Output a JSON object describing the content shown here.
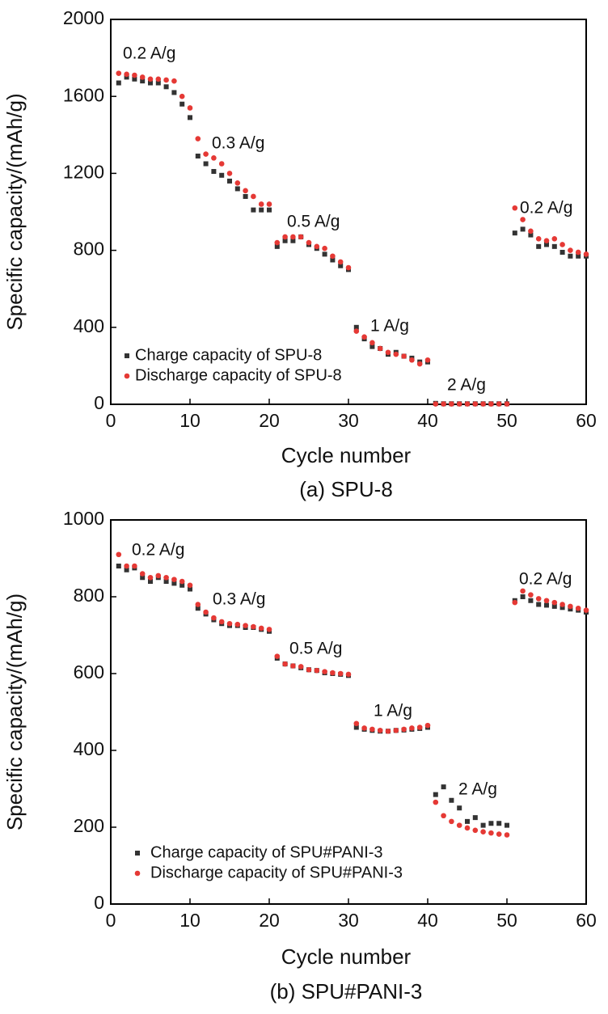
{
  "chart_data": [
    {
      "type": "scatter",
      "caption": "(a) SPU-8",
      "xlabel": "Cycle number",
      "ylabel": "Specific capacity/(mAh/g)",
      "xlim": [
        0,
        60
      ],
      "xticks": [
        0,
        10,
        20,
        30,
        40,
        50,
        60
      ],
      "ylim": [
        0,
        2000
      ],
      "yticks": [
        0,
        400,
        800,
        1200,
        1600,
        2000
      ],
      "legend": "lower left",
      "annotations": [
        "0.2 A/g",
        "0.3 A/g",
        "0.5 A/g",
        "1 A/g",
        "2 A/g",
        "0.2 A/g"
      ],
      "x": [
        1,
        2,
        3,
        4,
        5,
        6,
        7,
        8,
        9,
        10,
        11,
        12,
        13,
        14,
        15,
        16,
        17,
        18,
        19,
        20,
        21,
        22,
        23,
        24,
        25,
        26,
        27,
        28,
        29,
        30,
        31,
        32,
        33,
        34,
        35,
        36,
        37,
        38,
        39,
        40,
        41,
        42,
        43,
        44,
        45,
        46,
        47,
        48,
        49,
        50,
        51,
        52,
        53,
        54,
        55,
        56,
        57,
        58,
        59,
        60
      ],
      "series": [
        {
          "name": "Charge capacity of SPU-8",
          "color": "#333333",
          "marker": "square",
          "values": [
            1670,
            1700,
            1690,
            1680,
            1670,
            1670,
            1650,
            1620,
            1560,
            1490,
            1290,
            1250,
            1210,
            1190,
            1160,
            1120,
            1080,
            1010,
            1010,
            1010,
            820,
            850,
            850,
            870,
            830,
            810,
            780,
            750,
            720,
            700,
            400,
            340,
            300,
            290,
            260,
            270,
            250,
            240,
            220,
            220,
            5,
            3,
            3,
            3,
            3,
            3,
            3,
            3,
            3,
            3,
            890,
            910,
            880,
            820,
            830,
            820,
            790,
            770,
            770,
            770
          ]
        },
        {
          "name": "Discharge capacity of SPU-8",
          "color": "#e53935",
          "marker": "circle",
          "values": [
            1720,
            1715,
            1710,
            1700,
            1690,
            1690,
            1685,
            1680,
            1600,
            1540,
            1380,
            1300,
            1280,
            1250,
            1200,
            1150,
            1110,
            1080,
            1040,
            1040,
            840,
            870,
            870,
            870,
            840,
            820,
            810,
            770,
            740,
            710,
            380,
            350,
            320,
            290,
            270,
            260,
            250,
            230,
            210,
            230,
            2,
            2,
            2,
            2,
            2,
            2,
            2,
            2,
            2,
            2,
            1020,
            960,
            900,
            860,
            850,
            860,
            830,
            800,
            790,
            780
          ]
        }
      ]
    },
    {
      "type": "scatter",
      "caption": "(b) SPU#PANI-3",
      "xlabel": "Cycle number",
      "ylabel": "Specific capacity/(mAh/g)",
      "xlim": [
        0,
        60
      ],
      "xticks": [
        0,
        10,
        20,
        30,
        40,
        50,
        60
      ],
      "ylim": [
        0,
        1000
      ],
      "yticks": [
        0,
        200,
        400,
        600,
        800,
        1000
      ],
      "legend": "lower left",
      "annotations": [
        "0.2 A/g",
        "0.3 A/g",
        "0.5 A/g",
        "1 A/g",
        "2 A/g",
        "0.2 A/g"
      ],
      "x": [
        1,
        2,
        3,
        4,
        5,
        6,
        7,
        8,
        9,
        10,
        11,
        12,
        13,
        14,
        15,
        16,
        17,
        18,
        19,
        20,
        21,
        22,
        23,
        24,
        25,
        26,
        27,
        28,
        29,
        30,
        31,
        32,
        33,
        34,
        35,
        36,
        37,
        38,
        39,
        40,
        41,
        42,
        43,
        44,
        45,
        46,
        47,
        48,
        49,
        50,
        51,
        52,
        53,
        54,
        55,
        56,
        57,
        58,
        59,
        60
      ],
      "series": [
        {
          "name": "Charge capacity of SPU#PANI-3",
          "color": "#333333",
          "marker": "square",
          "values": [
            880,
            870,
            875,
            850,
            840,
            850,
            840,
            835,
            830,
            820,
            770,
            755,
            740,
            730,
            725,
            725,
            720,
            720,
            715,
            710,
            640,
            625,
            620,
            615,
            610,
            608,
            602,
            600,
            598,
            595,
            460,
            455,
            452,
            450,
            450,
            452,
            453,
            455,
            457,
            460,
            285,
            305,
            270,
            250,
            215,
            225,
            205,
            210,
            210,
            205,
            790,
            800,
            790,
            780,
            778,
            775,
            772,
            768,
            765,
            760
          ]
        },
        {
          "name": "Discharge capacity of SPU#PANI-3",
          "color": "#e53935",
          "marker": "circle",
          "values": [
            910,
            880,
            880,
            860,
            850,
            855,
            850,
            845,
            840,
            830,
            780,
            760,
            745,
            735,
            730,
            728,
            725,
            722,
            718,
            715,
            645,
            625,
            620,
            618,
            610,
            608,
            605,
            602,
            600,
            598,
            470,
            458,
            455,
            452,
            450,
            452,
            455,
            458,
            460,
            465,
            265,
            230,
            215,
            205,
            198,
            192,
            188,
            185,
            182,
            180,
            785,
            815,
            805,
            795,
            790,
            785,
            780,
            775,
            770,
            765
          ]
        }
      ]
    }
  ]
}
